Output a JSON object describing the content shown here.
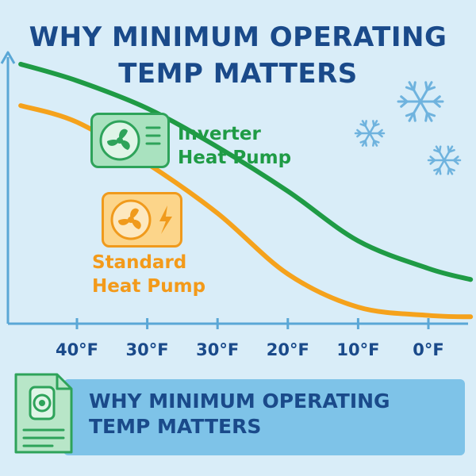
{
  "title": {
    "line1": "WHY MINIMUM OPERATING",
    "line2": "TEMP MATTERS"
  },
  "footer": {
    "line1": "WHY MINIMUM OPERATING",
    "line2": "TEMP MATTERS"
  },
  "icons": {
    "inverter_unit": "fan-icon",
    "standard_unit": "fan-lightning-icon",
    "snow": "snowflake-icon",
    "footer": "document-icon"
  },
  "colors": {
    "background": "#d9edf8",
    "title": "#1a4a8a",
    "inverter": "#1f9b45",
    "standard": "#f5a21c",
    "axis": "#5aa7d6",
    "footer_bar": "#7ec3e8"
  },
  "chart_data": {
    "type": "line",
    "title": "",
    "xlabel": "",
    "ylabel": "",
    "categories": [
      "40°F",
      "30°F",
      "30°F",
      "20°F",
      "10°F",
      "0°F"
    ],
    "ylim": [
      0,
      100
    ],
    "grid": false,
    "series": [
      {
        "name": "Inverter Heat Pump",
        "labels": [
          "Inverter",
          "Heat Pump"
        ],
        "color": "#1f9b45",
        "x": [
          -0.8,
          0,
          1,
          2,
          3,
          4,
          5,
          5.6
        ],
        "values": [
          94,
          88,
          78,
          64,
          48,
          30,
          20,
          16
        ]
      },
      {
        "name": "Standard Heat Pump",
        "labels": [
          "Standard",
          "Heat Pump"
        ],
        "color": "#f5a21c",
        "x": [
          -0.8,
          0,
          1,
          2,
          3,
          4,
          5,
          5.6
        ],
        "values": [
          79,
          73,
          58,
          40,
          18,
          6,
          3,
          2.5
        ]
      }
    ]
  }
}
